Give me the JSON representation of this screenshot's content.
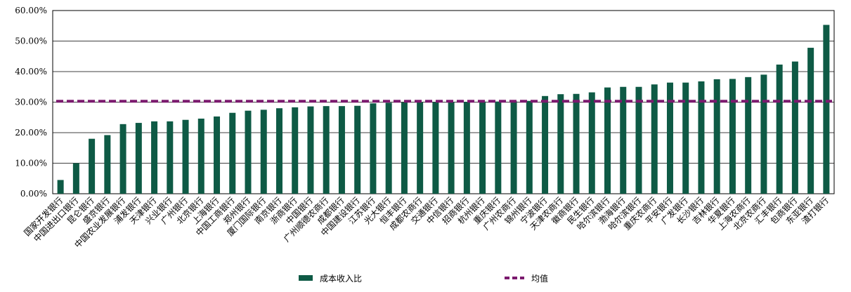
{
  "chart_data": {
    "type": "bar",
    "categories": [
      "国家开发银行",
      "中国进出口银行",
      "昆仑银行",
      "盛京银行",
      "中国农业发展银行",
      "浦发银行",
      "天津银行",
      "兴业银行",
      "广州银行",
      "北京银行",
      "上海银行",
      "中国工商银行",
      "郑州银行",
      "厦门国际银行",
      "南京银行",
      "浙商银行",
      "中国银行",
      "广州顺德农商行",
      "成都银行",
      "中国建设银行",
      "江苏银行",
      "光大银行",
      "恒丰银行",
      "成都农商行",
      "交通银行",
      "中信银行",
      "招商银行",
      "杭州银行",
      "重庆银行",
      "广州农商行",
      "锦州银行",
      "宁波银行",
      "天津农商行",
      "徽商银行",
      "民生银行",
      "哈尔滨银行",
      "渤海银行",
      "哈尔滨银行",
      "重庆农商行",
      "平安银行",
      "广发银行",
      "长沙银行",
      "吉林银行",
      "华夏银行",
      "上海农商行",
      "北京农商行",
      "汇丰银行",
      "包商银行",
      "东亚银行",
      "渣打银行"
    ],
    "series": [
      {
        "name": "成本收入比",
        "color": "#0e5a45",
        "values": [
          4.5,
          10,
          18,
          19.2,
          22.8,
          23.2,
          23.7,
          23.7,
          24.2,
          24.6,
          25.3,
          26.5,
          27.2,
          27.5,
          28,
          28.3,
          28.6,
          28.7,
          28.7,
          28.8,
          29.6,
          29.8,
          29.9,
          30,
          30,
          30.1,
          30.1,
          30.2,
          30.2,
          30.3,
          30.4,
          32,
          32.6,
          32.7,
          33.2,
          34.8,
          35,
          35,
          35.8,
          36.4,
          36.4,
          36.8,
          37.5,
          37.6,
          38.2,
          39,
          42.3,
          43.3,
          47.8,
          55.3
        ]
      }
    ],
    "mean": {
      "name": "均值",
      "value": 30.3,
      "color": "#7b1a6e"
    },
    "ylim": [
      0,
      60
    ],
    "yticks": [
      {
        "value": 0,
        "label": "0.00%"
      },
      {
        "value": 10,
        "label": "10.00%"
      },
      {
        "value": 20,
        "label": "20.00%"
      },
      {
        "value": 30,
        "label": "30.00%"
      },
      {
        "value": 40,
        "label": "40.00%"
      },
      {
        "value": 50,
        "label": "50.00%"
      },
      {
        "value": 60,
        "label": "60.00%"
      }
    ]
  }
}
